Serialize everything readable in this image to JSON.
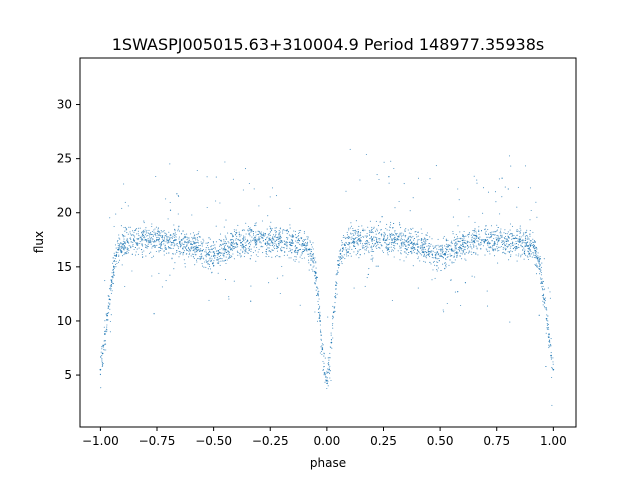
{
  "chart_data": {
    "type": "scatter",
    "title": "1SWASPJ005015.63+310004.9 Period 148977.35938s",
    "xlabel": "phase",
    "ylabel": "flux",
    "xlim": [
      -1.09,
      1.1
    ],
    "ylim": [
      0.2,
      34.3
    ],
    "grid": false,
    "point_color": "#1f77b4",
    "x_ticks": [
      "−1.00",
      "−0.75",
      "−0.50",
      "−0.25",
      "0.00",
      "0.25",
      "0.50",
      "0.75",
      "1.00"
    ],
    "x_tick_values": [
      -1,
      -0.75,
      -0.5,
      -0.25,
      0,
      0.25,
      0.5,
      0.75,
      1
    ],
    "y_ticks": [
      "5",
      "10",
      "15",
      "20",
      "25",
      "30"
    ],
    "y_tick_values": [
      5,
      10,
      15,
      20,
      25,
      30
    ],
    "series": [
      {
        "x": [
          -1.0,
          -0.99,
          -0.98,
          -0.97,
          -0.96,
          -0.95,
          -0.94,
          -0.93,
          -0.92,
          -0.9,
          -0.88,
          -0.85,
          -0.8,
          -0.75,
          -0.7,
          -0.65,
          -0.6,
          -0.57,
          -0.55,
          -0.52,
          -0.5,
          -0.48,
          -0.45,
          -0.42,
          -0.4,
          -0.35,
          -0.3,
          -0.25,
          -0.2,
          -0.15,
          -0.1,
          -0.08,
          -0.06,
          -0.05,
          -0.04,
          -0.03,
          -0.02,
          -0.01,
          0.0,
          0.01,
          0.02,
          0.03,
          0.04,
          0.05,
          0.06,
          0.07,
          0.08,
          0.1,
          0.12,
          0.15,
          0.2,
          0.25,
          0.3,
          0.35,
          0.4,
          0.43,
          0.45,
          0.48,
          0.5,
          0.52,
          0.55,
          0.6,
          0.65,
          0.7,
          0.75,
          0.8,
          0.85,
          0.88,
          0.9,
          0.92,
          0.93,
          0.94,
          0.95,
          0.96,
          0.97,
          0.98,
          0.99,
          1.0
        ],
        "y": [
          5.5,
          7.0,
          8.8,
          10.5,
          12.0,
          13.6,
          15.0,
          16.0,
          16.6,
          17.1,
          17.3,
          17.4,
          17.5,
          17.5,
          17.4,
          17.3,
          17.1,
          16.8,
          16.5,
          16.1,
          16.0,
          16.2,
          16.6,
          17.0,
          17.2,
          17.4,
          17.5,
          17.5,
          17.4,
          17.2,
          17.0,
          16.6,
          15.8,
          14.5,
          12.5,
          10.0,
          7.5,
          5.2,
          4.5,
          5.5,
          8.0,
          10.8,
          13.3,
          15.2,
          16.2,
          16.7,
          17.0,
          17.2,
          17.3,
          17.4,
          17.5,
          17.5,
          17.5,
          17.4,
          17.1,
          16.8,
          16.4,
          16.1,
          16.0,
          16.2,
          16.6,
          17.1,
          17.4,
          17.5,
          17.5,
          17.4,
          17.3,
          17.2,
          17.0,
          16.5,
          15.8,
          14.8,
          13.5,
          12.0,
          10.2,
          8.5,
          6.8,
          5.5
        ]
      }
    ]
  }
}
